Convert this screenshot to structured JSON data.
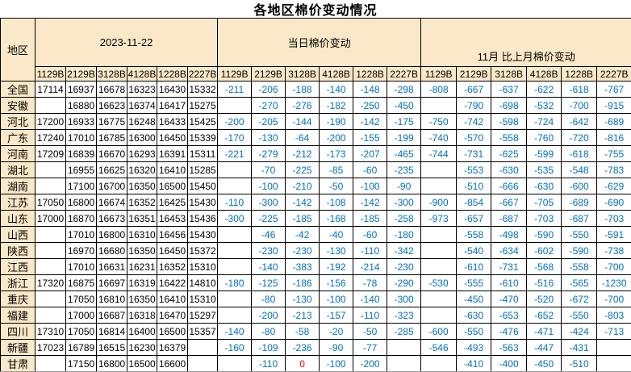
{
  "title": "各地区棉价变动情况",
  "colors": {
    "header_bg": "#FBE8C8",
    "change_text": "#0070C0",
    "zero_highlight": "#FF0000",
    "border": "#000000"
  },
  "table": {
    "region_header": "地区",
    "groups": [
      {
        "label": "2023-11-22"
      },
      {
        "label": "当日棉价变动"
      },
      {
        "label": "11月 比上月棉价变动"
      }
    ],
    "subheaders": [
      "1129B",
      "2129B",
      "3128B",
      "4128B",
      "1228B",
      "2227B"
    ],
    "rows": [
      {
        "region": "全国",
        "date": [
          "17114",
          "16937",
          "16678",
          "16323",
          "16430",
          "15332"
        ],
        "daily": [
          "-211",
          "-206",
          "-188",
          "-140",
          "-148",
          "-298"
        ],
        "monthly": [
          "-808",
          "-667",
          "-637",
          "-622",
          "-618",
          "-767"
        ]
      },
      {
        "region": "安徽",
        "date": [
          "",
          "16880",
          "16623",
          "16374",
          "16417",
          "15275"
        ],
        "daily": [
          "",
          "-270",
          "-276",
          "-182",
          "-250",
          "-450"
        ],
        "monthly": [
          "",
          "-790",
          "-698",
          "-532",
          "-700",
          "-915"
        ]
      },
      {
        "region": "河北",
        "date": [
          "17200",
          "16933",
          "16775",
          "16248",
          "16433",
          "15425"
        ],
        "daily": [
          "-200",
          "-205",
          "-144",
          "-190",
          "-142",
          "-175"
        ],
        "monthly": [
          "-750",
          "-742",
          "-598",
          "-724",
          "-642",
          "-689"
        ]
      },
      {
        "region": "广东",
        "date": [
          "17240",
          "17010",
          "16785",
          "16300",
          "16450",
          "15339"
        ],
        "daily": [
          "-170",
          "-130",
          "-64",
          "-200",
          "-155",
          "-199"
        ],
        "monthly": [
          "-740",
          "-570",
          "-558",
          "-760",
          "-720",
          "-816"
        ]
      },
      {
        "region": "河南",
        "date": [
          "17209",
          "16839",
          "16670",
          "16293",
          "16391",
          "15311"
        ],
        "daily": [
          "-221",
          "-279",
          "-212",
          "-173",
          "-207",
          "-465"
        ],
        "monthly": [
          "-744",
          "-731",
          "-625",
          "-599",
          "-618",
          "-755"
        ]
      },
      {
        "region": "湖北",
        "date": [
          "",
          "16955",
          "16625",
          "16320",
          "16410",
          "15285"
        ],
        "daily": [
          "",
          "-70",
          "-225",
          "-85",
          "-60",
          "-235"
        ],
        "monthly": [
          "",
          "-553",
          "-630",
          "-535",
          "-548",
          "-783"
        ]
      },
      {
        "region": "湖南",
        "date": [
          "",
          "17100",
          "16700",
          "16350",
          "16500",
          "15450"
        ],
        "daily": [
          "",
          "-100",
          "-210",
          "-50",
          "-100",
          "-90"
        ],
        "monthly": [
          "",
          "-510",
          "-666",
          "-630",
          "-600",
          "-629"
        ]
      },
      {
        "region": "江苏",
        "date": [
          "17050",
          "16800",
          "16674",
          "16352",
          "16425",
          "15430"
        ],
        "daily": [
          "-110",
          "-300",
          "-142",
          "-108",
          "-142",
          "-300"
        ],
        "monthly": [
          "-900",
          "-854",
          "-667",
          "-705",
          "-689",
          "-690"
        ]
      },
      {
        "region": "山东",
        "date": [
          "17000",
          "16870",
          "16673",
          "16351",
          "16453",
          "15436"
        ],
        "daily": [
          "-300",
          "-225",
          "-185",
          "-168",
          "-185",
          "-258"
        ],
        "monthly": [
          "-973",
          "-657",
          "-687",
          "-703",
          "-687",
          "-703"
        ]
      },
      {
        "region": "山西",
        "date": [
          "",
          "17010",
          "16800",
          "16310",
          "16456",
          "15430"
        ],
        "daily": [
          "",
          "-46",
          "-42",
          "-40",
          "-60",
          "-180"
        ],
        "monthly": [
          "",
          "-558",
          "-498",
          "-590",
          "-550",
          "-591"
        ]
      },
      {
        "region": "陕西",
        "date": [
          "",
          "16970",
          "16680",
          "16350",
          "16450",
          "15372"
        ],
        "daily": [
          "",
          "-230",
          "-230",
          "-130",
          "-110",
          "-342"
        ],
        "monthly": [
          "",
          "-540",
          "-634",
          "-602",
          "-590",
          "-738"
        ]
      },
      {
        "region": "江西",
        "date": [
          "",
          "17010",
          "16631",
          "16231",
          "16352",
          "15310"
        ],
        "daily": [
          "",
          "-140",
          "-383",
          "-192",
          "-214",
          "-230"
        ],
        "monthly": [
          "",
          "-610",
          "-731",
          "-568",
          "-558",
          "-700"
        ]
      },
      {
        "region": "浙江",
        "date": [
          "17320",
          "16875",
          "16697",
          "16319",
          "16422",
          "14810"
        ],
        "daily": [
          "-180",
          "-125",
          "-186",
          "-156",
          "-78",
          "-290"
        ],
        "monthly": [
          "-530",
          "-555",
          "-610",
          "-516",
          "-565",
          "-1230"
        ]
      },
      {
        "region": "重庆",
        "date": [
          "",
          "17050",
          "16810",
          "16350",
          "16410",
          "15310"
        ],
        "daily": [
          "",
          "-80",
          "-130",
          "-100",
          "-140",
          "-300"
        ],
        "monthly": [
          "",
          "-450",
          "-470",
          "-520",
          "-672",
          "-700"
        ]
      },
      {
        "region": "福建",
        "date": [
          "",
          "17000",
          "16687",
          "16318",
          "16470",
          "15297"
        ],
        "daily": [
          "",
          "-200",
          "-213",
          "-157",
          "-110",
          "-323"
        ],
        "monthly": [
          "",
          "-630",
          "-653",
          "-652",
          "-550",
          "-803"
        ]
      },
      {
        "region": "四川",
        "date": [
          "17310",
          "17050",
          "16814",
          "16400",
          "16500",
          "15357"
        ],
        "daily": [
          "-140",
          "-80",
          "-58",
          "-20",
          "-50",
          "-285"
        ],
        "monthly": [
          "-600",
          "-550",
          "-476",
          "-471",
          "-424",
          "-713"
        ]
      },
      {
        "region": "新疆",
        "date": [
          "17023",
          "16789",
          "16515",
          "16230",
          "16379",
          ""
        ],
        "daily": [
          "-160",
          "-109",
          "-236",
          "-90",
          "-77",
          ""
        ],
        "monthly": [
          "-546",
          "-493",
          "-563",
          "-447",
          "-431",
          ""
        ]
      },
      {
        "region": "甘肃",
        "date": [
          "",
          "17150",
          "16800",
          "16500",
          "16600",
          ""
        ],
        "daily": [
          "",
          "-110",
          "0",
          "-100",
          "-200",
          ""
        ],
        "monthly": [
          "",
          "-410",
          "-400",
          "-450",
          "-510",
          ""
        ]
      }
    ],
    "special_cells": [
      {
        "row_index": 17,
        "section": "daily",
        "col_index": 2,
        "color": "#FF0000"
      }
    ]
  }
}
